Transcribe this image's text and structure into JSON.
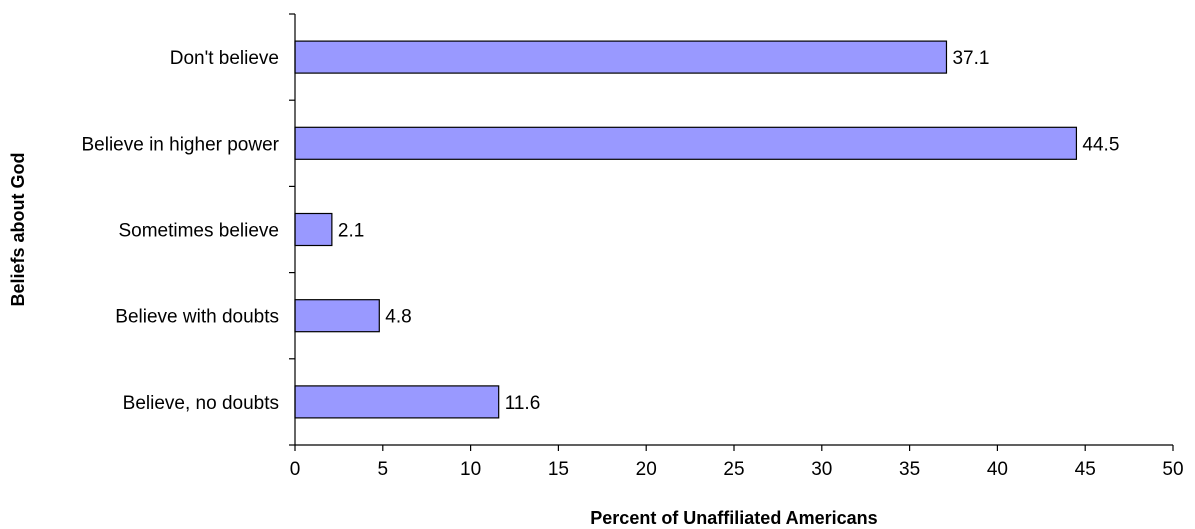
{
  "chart_data": {
    "type": "bar",
    "orientation": "horizontal",
    "categories": [
      "Don't believe",
      "Believe in higher power",
      "Sometimes believe",
      "Believe with doubts",
      "Believe, no doubts"
    ],
    "values": [
      37.1,
      44.5,
      2.1,
      4.8,
      11.6
    ],
    "data_labels": [
      "37.1",
      "44.5",
      "2.1",
      "4.8",
      "11.6"
    ],
    "xlabel": "Percent of Unaffiliated Americans",
    "ylabel": "Beliefs about God",
    "xlim": [
      0,
      50
    ],
    "xticks": [
      "0",
      "5",
      "10",
      "15",
      "20",
      "25",
      "30",
      "35",
      "40",
      "45",
      "50"
    ],
    "grid": false,
    "legend": "none",
    "bar_color": "#9999ff",
    "bar_edge_color": "#000000"
  }
}
